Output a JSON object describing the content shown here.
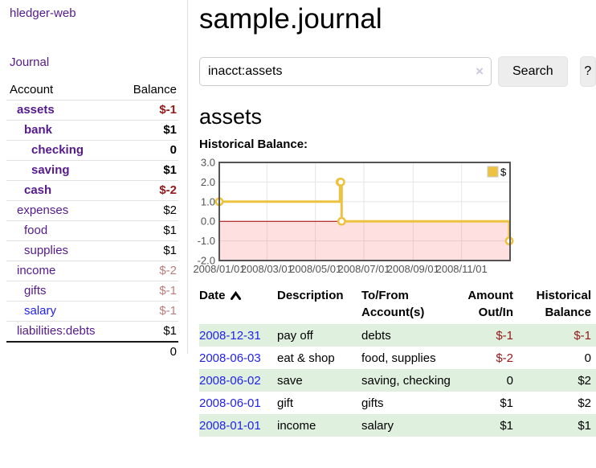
{
  "app": {
    "title": "hledger-web"
  },
  "colors": {
    "link_visited": "#551a8b",
    "link_blue": "#2222ee",
    "neg": "#951717",
    "neg_soft": "#bd7c7c",
    "row_green": "#dff0df"
  },
  "sidebar": {
    "journal_link": "Journal",
    "table": {
      "headers": {
        "account": "Account",
        "balance": "Balance"
      },
      "rows": [
        {
          "name": "assets",
          "depth": 1,
          "bold": true,
          "balance": "$-1"
        },
        {
          "name": "bank",
          "depth": 2,
          "bold": true,
          "balance": "$1"
        },
        {
          "name": "checking",
          "depth": 3,
          "bold": true,
          "balance": "0"
        },
        {
          "name": "saving",
          "depth": 3,
          "bold": true,
          "balance": "$1"
        },
        {
          "name": "cash",
          "depth": 2,
          "bold": true,
          "balance": "$-2"
        },
        {
          "name": "expenses",
          "depth": 1,
          "bold": false,
          "balance": "$2"
        },
        {
          "name": "food",
          "depth": 2,
          "bold": false,
          "balance": "$1"
        },
        {
          "name": "supplies",
          "depth": 2,
          "bold": false,
          "balance": "$1"
        },
        {
          "name": "income",
          "depth": 1,
          "bold": false,
          "balance": "$-2"
        },
        {
          "name": "gifts",
          "depth": 2,
          "bold": false,
          "balance": "$-1"
        },
        {
          "name": "salary",
          "depth": 2,
          "bold": false,
          "balance": "$-1",
          "color": "blue"
        },
        {
          "name": "liabilities:debts",
          "depth": 1,
          "bold": false,
          "balance": "$1"
        }
      ],
      "total": "0"
    }
  },
  "main": {
    "title": "sample.journal",
    "search": {
      "value": "inacct:assets",
      "clear_icon": "×",
      "button": "Search",
      "help": "?"
    },
    "account_heading": "assets",
    "chart_label": "Historical Balance:"
  },
  "chart_data": {
    "type": "line",
    "title": "Historical Balance:",
    "series": [
      {
        "name": "$",
        "color": "#edc240",
        "step": true,
        "points": [
          [
            "2008-01-01",
            1
          ],
          [
            "2008-06-01",
            2
          ],
          [
            "2008-06-02",
            2
          ],
          [
            "2008-06-03",
            0
          ],
          [
            "2008-12-31",
            -1
          ]
        ]
      }
    ],
    "x_domain": [
      "2008-01-01",
      "2009-01-01"
    ],
    "x_ticks": [
      "2008/01/01",
      "2008/03/01",
      "2008/05/01",
      "2008/07/01",
      "2008/09/01",
      "2008/11/01"
    ],
    "y_ticks": [
      3,
      2,
      1,
      0,
      -1,
      -2
    ],
    "y_tick_labels": [
      "3.0",
      "2.0",
      "1.0",
      "0.0",
      "-1.0",
      "-2.0"
    ],
    "ylim": [
      -2,
      3
    ],
    "grid": true,
    "grid_color": "#e6e6e6",
    "border_color": "#545454",
    "tick_label_color": "#545454",
    "zero_line_color": "#a40000",
    "negative_region_color": "rgba(255,0,0,0.12)",
    "legend": {
      "label": "$",
      "position": "top-right"
    }
  },
  "register": {
    "columns": [
      {
        "line1": "Date",
        "line2": "",
        "align": "left",
        "sortable": true
      },
      {
        "line1": "Description",
        "line2": "",
        "align": "left"
      },
      {
        "line1": "To/From",
        "line2": "Account(s)",
        "align": "left"
      },
      {
        "line1": "Amount",
        "line2": "Out/In",
        "align": "right"
      },
      {
        "line1": "Historical",
        "line2": "Balance",
        "align": "right"
      }
    ],
    "rows": [
      {
        "date": "2008-12-31",
        "description": "pay off",
        "accounts": "debts",
        "amount": "$-1",
        "balance": "$-1"
      },
      {
        "date": "2008-06-03",
        "description": "eat & shop",
        "accounts": "food, supplies",
        "amount": "$-2",
        "balance": "0"
      },
      {
        "date": "2008-06-02",
        "description": "save",
        "accounts": "saving, checking",
        "amount": "0",
        "balance": "$2"
      },
      {
        "date": "2008-06-01",
        "description": "gift",
        "accounts": "gifts",
        "amount": "$1",
        "balance": "$2"
      },
      {
        "date": "2008-01-01",
        "description": "income",
        "accounts": "salary",
        "amount": "$1",
        "balance": "$1"
      }
    ]
  }
}
